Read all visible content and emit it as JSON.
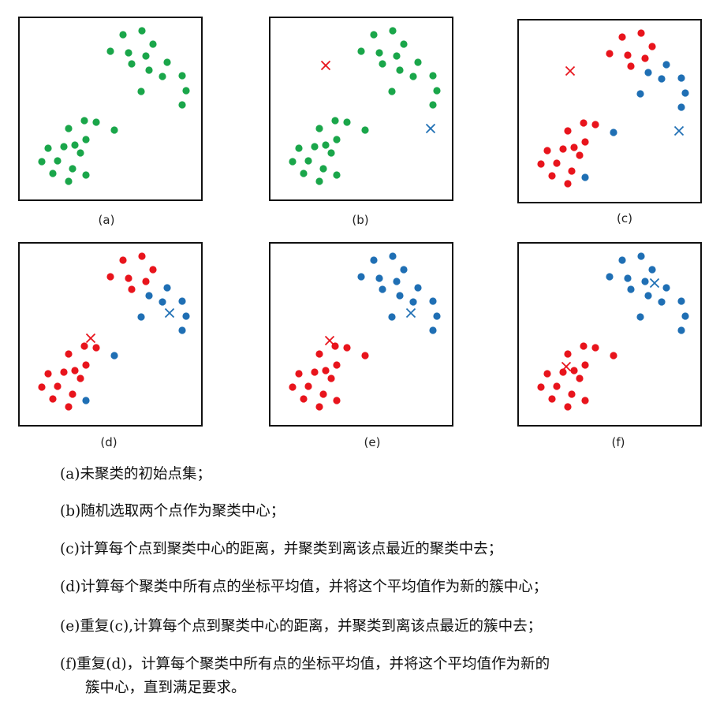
{
  "colors": {
    "green": "#1aa64a",
    "red": "#e8141c",
    "blue": "#1f6fb4"
  },
  "panels": [
    {
      "label": "(a)",
      "points": [
        {
          "c": "green",
          "p": [
            [
              131,
              21
            ],
            [
              155,
              16
            ],
            [
              115,
              42
            ],
            [
              138,
              44
            ],
            [
              160,
              48
            ],
            [
              169,
              33
            ],
            [
              142,
              58
            ],
            [
              164,
              66
            ],
            [
              187,
              56
            ],
            [
              181,
              74
            ],
            [
              206,
              73
            ],
            [
              211,
              92
            ],
            [
              154,
              93
            ],
            [
              206,
              110
            ],
            [
              82,
              130
            ],
            [
              97,
              132
            ],
            [
              62,
              140
            ],
            [
              120,
              142
            ],
            [
              84,
              154
            ],
            [
              70,
              161
            ],
            [
              36,
              165
            ],
            [
              56,
              163
            ],
            [
              77,
              171
            ],
            [
              48,
              181
            ],
            [
              28,
              182
            ],
            [
              67,
              191
            ],
            [
              42,
              197
            ],
            [
              84,
              199
            ],
            [
              62,
              207
            ]
          ]
        }
      ],
      "centroids": []
    },
    {
      "label": "(b)",
      "points": [
        {
          "c": "green",
          "p": [
            [
              131,
              21
            ],
            [
              155,
              16
            ],
            [
              115,
              42
            ],
            [
              138,
              44
            ],
            [
              160,
              48
            ],
            [
              169,
              33
            ],
            [
              142,
              58
            ],
            [
              164,
              66
            ],
            [
              187,
              56
            ],
            [
              181,
              74
            ],
            [
              206,
              73
            ],
            [
              211,
              92
            ],
            [
              154,
              93
            ],
            [
              206,
              110
            ],
            [
              82,
              130
            ],
            [
              97,
              132
            ],
            [
              62,
              140
            ],
            [
              120,
              142
            ],
            [
              84,
              154
            ],
            [
              70,
              161
            ],
            [
              36,
              165
            ],
            [
              56,
              163
            ],
            [
              77,
              171
            ],
            [
              48,
              181
            ],
            [
              28,
              182
            ],
            [
              67,
              191
            ],
            [
              42,
              197
            ],
            [
              84,
              199
            ],
            [
              62,
              207
            ]
          ]
        }
      ],
      "centroids": [
        {
          "c": "red",
          "p": [
            70,
            60
          ]
        },
        {
          "c": "blue",
          "p": [
            203,
            140
          ]
        }
      ]
    },
    {
      "label": "(c)",
      "points": [
        {
          "c": "red",
          "p": [
            [
              131,
              21
            ],
            [
              155,
              16
            ],
            [
              115,
              42
            ],
            [
              138,
              44
            ],
            [
              160,
              48
            ],
            [
              169,
              33
            ],
            [
              142,
              58
            ],
            [
              82,
              130
            ],
            [
              97,
              132
            ],
            [
              62,
              140
            ],
            [
              84,
              154
            ],
            [
              70,
              161
            ],
            [
              36,
              165
            ],
            [
              56,
              163
            ],
            [
              77,
              171
            ],
            [
              48,
              181
            ],
            [
              28,
              182
            ],
            [
              67,
              191
            ],
            [
              42,
              197
            ],
            [
              62,
              207
            ]
          ]
        },
        {
          "c": "blue",
          "p": [
            [
              164,
              66
            ],
            [
              187,
              56
            ],
            [
              181,
              74
            ],
            [
              206,
              73
            ],
            [
              211,
              92
            ],
            [
              154,
              93
            ],
            [
              206,
              110
            ],
            [
              120,
              142
            ],
            [
              84,
              199
            ]
          ]
        }
      ],
      "centroids": [
        {
          "c": "red",
          "p": [
            65,
            64
          ]
        },
        {
          "c": "blue",
          "p": [
            203,
            140
          ]
        }
      ]
    },
    {
      "label": "(d)",
      "points": [
        {
          "c": "red",
          "p": [
            [
              131,
              21
            ],
            [
              155,
              16
            ],
            [
              115,
              42
            ],
            [
              138,
              44
            ],
            [
              160,
              48
            ],
            [
              169,
              33
            ],
            [
              142,
              58
            ],
            [
              82,
              130
            ],
            [
              97,
              132
            ],
            [
              62,
              140
            ],
            [
              84,
              154
            ],
            [
              70,
              161
            ],
            [
              36,
              165
            ],
            [
              56,
              163
            ],
            [
              77,
              171
            ],
            [
              48,
              181
            ],
            [
              28,
              182
            ],
            [
              67,
              191
            ],
            [
              42,
              197
            ],
            [
              62,
              207
            ]
          ]
        },
        {
          "c": "blue",
          "p": [
            [
              164,
              66
            ],
            [
              187,
              56
            ],
            [
              181,
              74
            ],
            [
              206,
              73
            ],
            [
              211,
              92
            ],
            [
              154,
              93
            ],
            [
              206,
              110
            ],
            [
              120,
              142
            ],
            [
              84,
              199
            ]
          ]
        }
      ],
      "centroids": [
        {
          "c": "red",
          "p": [
            90,
            120
          ]
        },
        {
          "c": "blue",
          "p": [
            190,
            88
          ]
        }
      ]
    },
    {
      "label": "(e)",
      "points": [
        {
          "c": "blue",
          "p": [
            [
              131,
              21
            ],
            [
              155,
              16
            ],
            [
              115,
              42
            ],
            [
              138,
              44
            ],
            [
              160,
              48
            ],
            [
              169,
              33
            ],
            [
              142,
              58
            ],
            [
              164,
              66
            ],
            [
              187,
              56
            ],
            [
              181,
              74
            ],
            [
              206,
              73
            ],
            [
              211,
              92
            ],
            [
              154,
              93
            ],
            [
              206,
              110
            ]
          ]
        },
        {
          "c": "red",
          "p": [
            [
              82,
              130
            ],
            [
              97,
              132
            ],
            [
              62,
              140
            ],
            [
              120,
              142
            ],
            [
              84,
              154
            ],
            [
              70,
              161
            ],
            [
              36,
              165
            ],
            [
              56,
              163
            ],
            [
              77,
              171
            ],
            [
              48,
              181
            ],
            [
              28,
              182
            ],
            [
              67,
              191
            ],
            [
              42,
              197
            ],
            [
              84,
              199
            ],
            [
              62,
              207
            ]
          ]
        }
      ],
      "centroids": [
        {
          "c": "red",
          "p": [
            75,
            123
          ]
        },
        {
          "c": "blue",
          "p": [
            178,
            88
          ]
        }
      ]
    },
    {
      "label": "(f)",
      "points": [
        {
          "c": "blue",
          "p": [
            [
              131,
              21
            ],
            [
              155,
              16
            ],
            [
              115,
              42
            ],
            [
              138,
              44
            ],
            [
              160,
              48
            ],
            [
              169,
              33
            ],
            [
              142,
              58
            ],
            [
              164,
              66
            ],
            [
              187,
              56
            ],
            [
              181,
              74
            ],
            [
              206,
              73
            ],
            [
              211,
              92
            ],
            [
              154,
              93
            ],
            [
              206,
              110
            ]
          ]
        },
        {
          "c": "red",
          "p": [
            [
              82,
              130
            ],
            [
              97,
              132
            ],
            [
              62,
              140
            ],
            [
              120,
              142
            ],
            [
              84,
              154
            ],
            [
              70,
              161
            ],
            [
              36,
              165
            ],
            [
              56,
              163
            ],
            [
              77,
              171
            ],
            [
              48,
              181
            ],
            [
              28,
              182
            ],
            [
              67,
              191
            ],
            [
              42,
              197
            ],
            [
              84,
              199
            ],
            [
              62,
              207
            ]
          ]
        }
      ],
      "centroids": [
        {
          "c": "red",
          "p": [
            60,
            156
          ]
        },
        {
          "c": "blue",
          "p": [
            172,
            50
          ]
        }
      ]
    }
  ],
  "captions": [
    {
      "text": "(a)未聚类的初始点集；"
    },
    {
      "text": "(b)随机选取两个点作为聚类中心；"
    },
    {
      "text": "(c)计算每个点到聚类中心的距离，并聚类到离该点最近的聚类中去；"
    },
    {
      "text": "(d)计算每个聚类中所有点的坐标平均值，并将这个平均值作为新的簇中心；"
    },
    {
      "text": "(e)重复(c),计算每个点到聚类中心的距离，并聚类到离该点最近的簇中去；"
    },
    {
      "text": "(f)重复(d)，计算每个聚类中所有点的坐标平均值，并将这个平均值作为新的",
      "cont": "簇中心，直到满足要求。"
    }
  ]
}
